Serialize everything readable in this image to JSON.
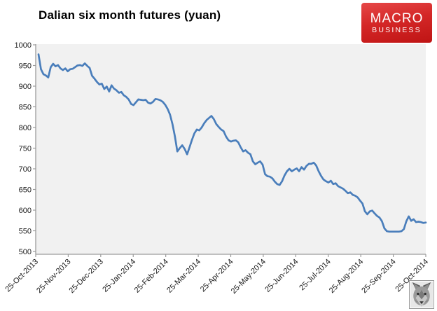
{
  "header": {
    "title": "Dalian six month futures (yuan)"
  },
  "logo": {
    "line1": "MACRO",
    "line2": "BUSINESS",
    "bg_top": "#e64848",
    "bg_bottom": "#bf1414",
    "text_color": "#ffffff"
  },
  "watermark": {
    "description": "small grayscale wolf head photo"
  },
  "chart_data": {
    "type": "line",
    "title": "Dalian six month futures (yuan)",
    "xlabel": "",
    "ylabel": "",
    "ylim": [
      500,
      1000
    ],
    "y_ticks": [
      500,
      550,
      600,
      650,
      700,
      750,
      800,
      850,
      900,
      950,
      1000
    ],
    "x_tick_labels": [
      "25-Oct-2013",
      "25-Nov-2013",
      "25-Dec-2013",
      "25-Jan-2014",
      "25-Feb-2014",
      "25-Mar-2014",
      "25-Apr-2014",
      "25-May-2014",
      "25-Jun-2014",
      "25-Jul-2014",
      "25-Aug-2014",
      "25-Sep-2014",
      "25-Oct-2014"
    ],
    "x_range": [
      "25-Oct-2013",
      "25-Oct-2014"
    ],
    "sampling": "uniform daily prices across one year",
    "grid": false,
    "legend_position": "none",
    "plot_bg": "#f1f1f1",
    "axis_color": "#9c9c9c",
    "tick_label_color": "#1a1a1a",
    "series": [
      {
        "name": "Dalian six month futures (yuan)",
        "color": "#4a7ebb",
        "stroke_width": 2.7,
        "values": [
          977,
          941,
          929,
          926,
          921,
          946,
          954,
          948,
          951,
          943,
          939,
          943,
          936,
          941,
          942,
          946,
          950,
          951,
          949,
          955,
          949,
          944,
          925,
          918,
          910,
          904,
          906,
          893,
          899,
          887,
          902,
          894,
          890,
          884,
          886,
          878,
          874,
          868,
          857,
          854,
          861,
          868,
          867,
          866,
          867,
          860,
          858,
          862,
          869,
          868,
          866,
          862,
          855,
          845,
          831,
          808,
          778,
          742,
          750,
          757,
          748,
          735,
          752,
          770,
          786,
          795,
          793,
          800,
          810,
          818,
          823,
          828,
          820,
          808,
          801,
          795,
          791,
          778,
          769,
          766,
          768,
          769,
          764,
          752,
          742,
          745,
          739,
          735,
          718,
          711,
          715,
          718,
          710,
          687,
          682,
          681,
          677,
          669,
          663,
          661,
          670,
          684,
          694,
          700,
          694,
          698,
          701,
          694,
          704,
          698,
          707,
          712,
          712,
          715,
          708,
          694,
          683,
          674,
          670,
          667,
          671,
          663,
          665,
          658,
          655,
          652,
          647,
          641,
          643,
          637,
          635,
          631,
          623,
          616,
          597,
          590,
          597,
          599,
          592,
          586,
          582,
          573,
          556,
          549,
          548,
          548,
          548,
          548,
          548,
          549,
          554,
          573,
          585,
          574,
          578,
          571,
          572,
          571,
          569,
          570
        ]
      }
    ]
  }
}
